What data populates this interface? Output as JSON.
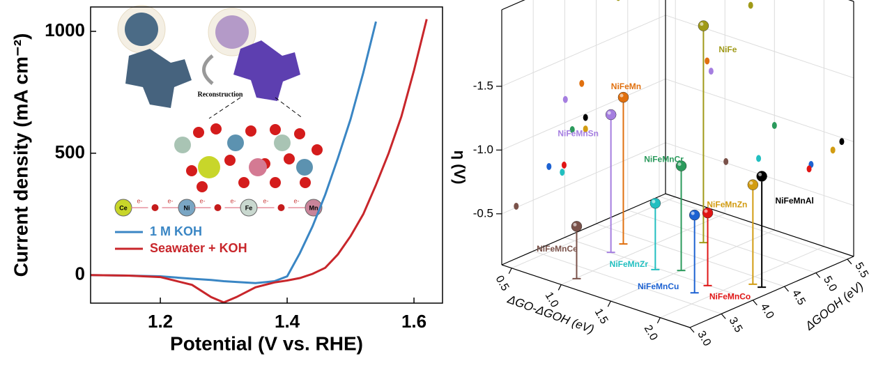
{
  "chart_data": [
    {
      "type": "line",
      "x_label": "Potential (V vs. RHE)",
      "y_label": "Current density (mA cm⁻²)",
      "x": [
        1.09,
        1.15,
        1.2,
        1.25,
        1.28,
        1.3,
        1.32,
        1.35,
        1.38,
        1.4,
        1.42,
        1.44,
        1.46,
        1.48,
        1.5,
        1.52,
        1.54,
        1.56,
        1.58,
        1.6,
        1.62
      ],
      "series": [
        {
          "name": "1 M KOH",
          "color": "#3a86c4",
          "values": [
            0,
            -2,
            -5,
            -15,
            -20,
            -25,
            -28,
            -33,
            -25,
            -5,
            90,
            200,
            330,
            480,
            640,
            830,
            1040,
            null,
            null,
            null,
            null
          ]
        },
        {
          "name": "Seawater + KOH",
          "color": "#c8262b",
          "values": [
            0,
            -2,
            -8,
            -40,
            -90,
            -112,
            -90,
            -50,
            -30,
            -22,
            -12,
            5,
            30,
            85,
            160,
            250,
            370,
            500,
            650,
            840,
            1050
          ]
        }
      ],
      "xlim": [
        1.09,
        1.645
      ],
      "ylim": [
        -115,
        1100
      ],
      "xticks": [
        1.2,
        1.4,
        1.6
      ],
      "yticks": [
        0,
        500,
        1000
      ],
      "legend": "lower-left",
      "inset": {
        "caption": "Reconstruction",
        "chain": [
          "Ce",
          "Ni",
          "Fe",
          "Mn"
        ],
        "electron": "e-"
      }
    },
    {
      "type": "scatter3d",
      "x_label": "ΔGO-ΔGOH (eV)",
      "y_label": "ΔGOOH (eV)",
      "z_label": "η (V)",
      "xlim": [
        0.4,
        2.3
      ],
      "ylim": [
        3.0,
        5.6
      ],
      "zlim": [
        -0.1,
        -2.1
      ],
      "xticks": [
        {
          "value": 0.5,
          "label": "0.5"
        },
        {
          "value": 1.0,
          "label": "1.0"
        },
        1.5,
        {
          "value": 2.0,
          "label": "2.0"
        }
      ],
      "yticks": [
        {
          "value": 3.0,
          "label": "3.0"
        },
        3.5,
        {
          "value": 4.0,
          "label": "4.0"
        },
        4.5,
        {
          "value": 5.0,
          "label": "5.0"
        },
        5.5
      ],
      "zticks": [
        -0.5,
        {
          "value": -1.0,
          "label": "-1.0"
        },
        -1.5
      ],
      "grid": true,
      "series": [
        {
          "name": "NiFe",
          "color": "#a09a18",
          "x": 1.26,
          "y": 4.85,
          "z": -1.8
        },
        {
          "name": "NiFeMn",
          "color": "#e0700f",
          "x": 0.82,
          "y": 4.27,
          "z": -1.25
        },
        {
          "name": "NiFeMnSn",
          "color": "#a57ee0",
          "x": 0.86,
          "y": 4.01,
          "z": -1.18
        },
        {
          "name": "NiFeMnCr",
          "color": "#2b9a5c",
          "x": 1.5,
          "y": 4.12,
          "z": -0.92
        },
        {
          "name": "NiFeMnZr",
          "color": "#22bfc0",
          "x": 1.34,
          "y": 3.96,
          "z": -0.62
        },
        {
          "name": "NiFeMnCu",
          "color": "#1d62d2",
          "x": 1.87,
          "y": 3.75,
          "z": -0.71
        },
        {
          "name": "NiFeMnCo",
          "color": "#e01515",
          "x": 1.85,
          "y": 3.99,
          "z": -0.67
        },
        {
          "name": "NiFeMnZn",
          "color": "#d29c12",
          "x": 2.09,
          "y": 4.33,
          "z": -0.88
        },
        {
          "name": "NiFeMnAl",
          "color": "#000000",
          "x": 2.18,
          "y": 4.33,
          "z": -0.97
        },
        {
          "name": "NiFeMnCe",
          "color": "#7a524a",
          "x": 1.01,
          "y": 3.23,
          "z": -0.51
        }
      ]
    }
  ]
}
